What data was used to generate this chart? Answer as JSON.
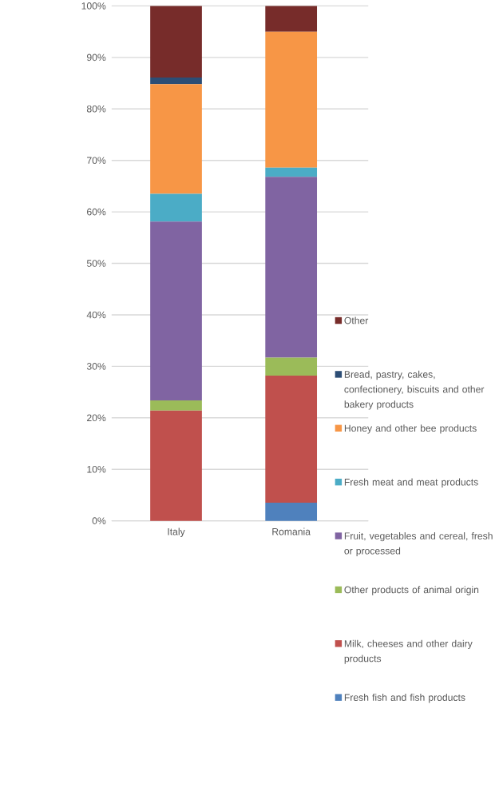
{
  "chart_data": {
    "type": "bar",
    "stacked": true,
    "categories": [
      "Italy",
      "Romania"
    ],
    "series": [
      {
        "name": "Fresh fish and fish products",
        "color": "#4f81bd",
        "values": [
          0,
          3.5
        ]
      },
      {
        "name": "Milk, cheeses and other dairy products",
        "color": "#c0504d",
        "values": [
          21.4,
          24.7
        ]
      },
      {
        "name": "Other products of animal origin",
        "color": "#9bbb59",
        "values": [
          2.0,
          3.5
        ]
      },
      {
        "name": "Fruit, vegetables and cereal, fresh or processed",
        "color": "#8064a2",
        "values": [
          34.7,
          35.1
        ]
      },
      {
        "name": "Fresh meat and meat products",
        "color": "#4bacc6",
        "values": [
          5.4,
          1.8
        ]
      },
      {
        "name": "Honey and other bee products",
        "color": "#f79646",
        "values": [
          21.3,
          26.4
        ]
      },
      {
        "name": "Bread, pastry, cakes, confectionery, biscuits and other bakery products",
        "color": "#2c4d75",
        "values": [
          1.3,
          0
        ]
      },
      {
        "name": "Other",
        "color": "#772c2a",
        "values": [
          13.9,
          5.0
        ]
      }
    ],
    "ylim": [
      0,
      100
    ],
    "yticks": [
      {
        "value": 0,
        "label": "0%"
      },
      {
        "value": 10,
        "label": "10%"
      },
      {
        "value": 20,
        "label": "20%"
      },
      {
        "value": 30,
        "label": "30%"
      },
      {
        "value": 40,
        "label": "40%"
      },
      {
        "value": 50,
        "label": "50%"
      },
      {
        "value": 60,
        "label": "60%"
      },
      {
        "value": 70,
        "label": "70%"
      },
      {
        "value": 80,
        "label": "80%"
      },
      {
        "value": 90,
        "label": "90%"
      },
      {
        "value": 100,
        "label": "100%"
      }
    ],
    "grid": "y",
    "legend": "right"
  }
}
